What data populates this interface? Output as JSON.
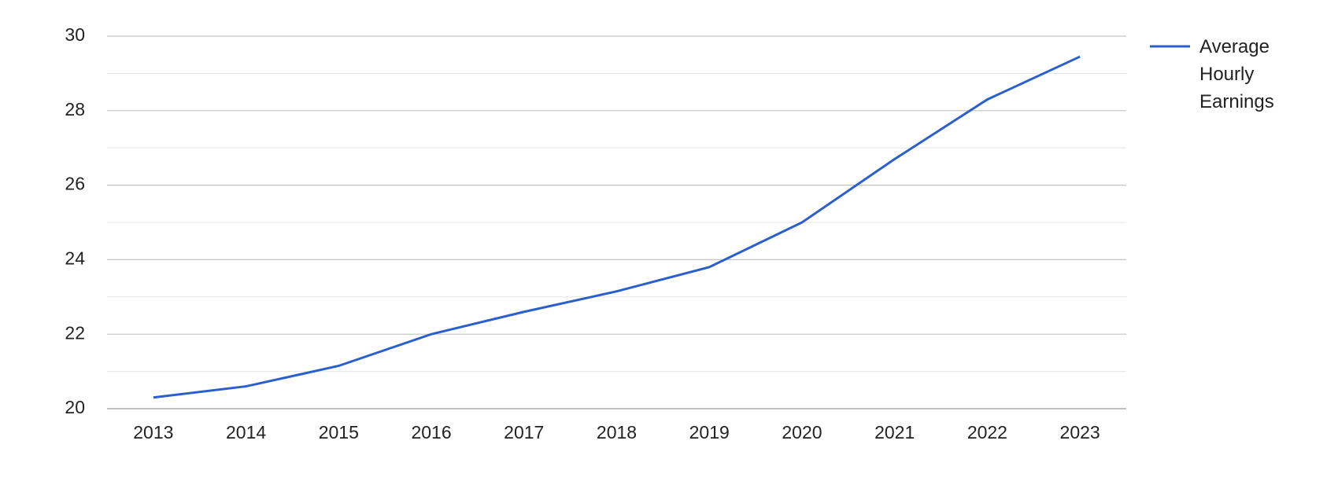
{
  "chart_data": {
    "type": "line",
    "categories": [
      "2013",
      "2014",
      "2015",
      "2016",
      "2017",
      "2018",
      "2019",
      "2020",
      "2021",
      "2022",
      "2023"
    ],
    "series": [
      {
        "name": "Average Hourly Earnings",
        "color": "#2b5fcc",
        "values": [
          20.3,
          20.6,
          21.15,
          22.0,
          22.6,
          23.15,
          23.8,
          25.0,
          26.7,
          28.3,
          29.45
        ]
      }
    ],
    "ylim": [
      20,
      30
    ],
    "yticks": [
      20,
      22,
      24,
      26,
      28,
      30
    ],
    "grid": true,
    "legend": "right"
  }
}
